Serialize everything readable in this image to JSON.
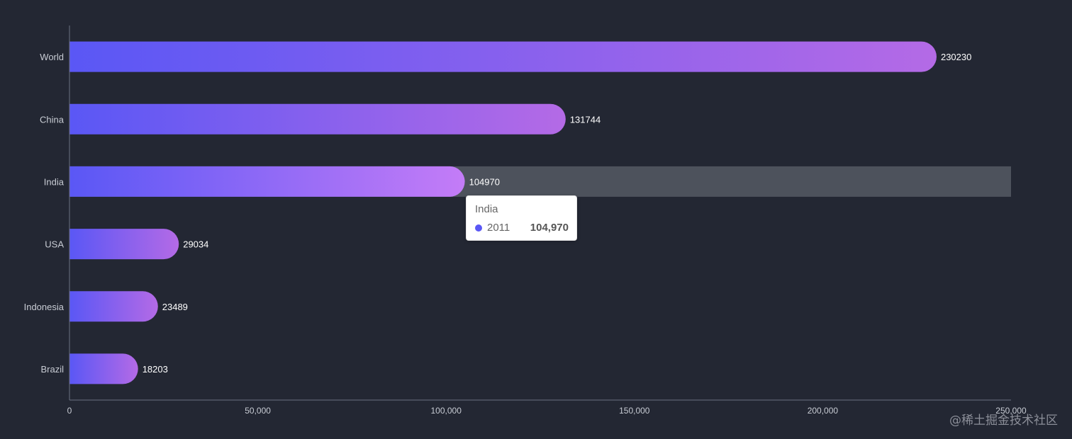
{
  "chart_data": {
    "type": "bar",
    "orientation": "horizontal",
    "categories": [
      "World",
      "China",
      "India",
      "USA",
      "Indonesia",
      "Brazil"
    ],
    "series": [
      {
        "name": "2011",
        "values": [
          230230,
          131744,
          104970,
          29034,
          23489,
          18203
        ]
      }
    ],
    "xlim": [
      0,
      250000
    ],
    "x_ticks": [
      "0",
      "50,000",
      "100,000",
      "150,000",
      "200,000",
      "250,000"
    ],
    "grid": false,
    "data_labels": true,
    "highlighted_category": "India",
    "colors": {
      "background": "#232733",
      "bar_gradient_start": "#5a57f5",
      "bar_gradient_end": "#b46ae6",
      "highlight_gradient_end": "#c47cf7",
      "hover_shadow": "#4d525c",
      "axis_line": "#6b7080",
      "axis_label": "#c8ccd4",
      "data_label": "#ffffff"
    }
  },
  "tooltip": {
    "title": "India",
    "series_name": "2011",
    "value": "104,970",
    "marker_color": "#5a57f5"
  },
  "watermark": "@稀土掘金技术社区"
}
